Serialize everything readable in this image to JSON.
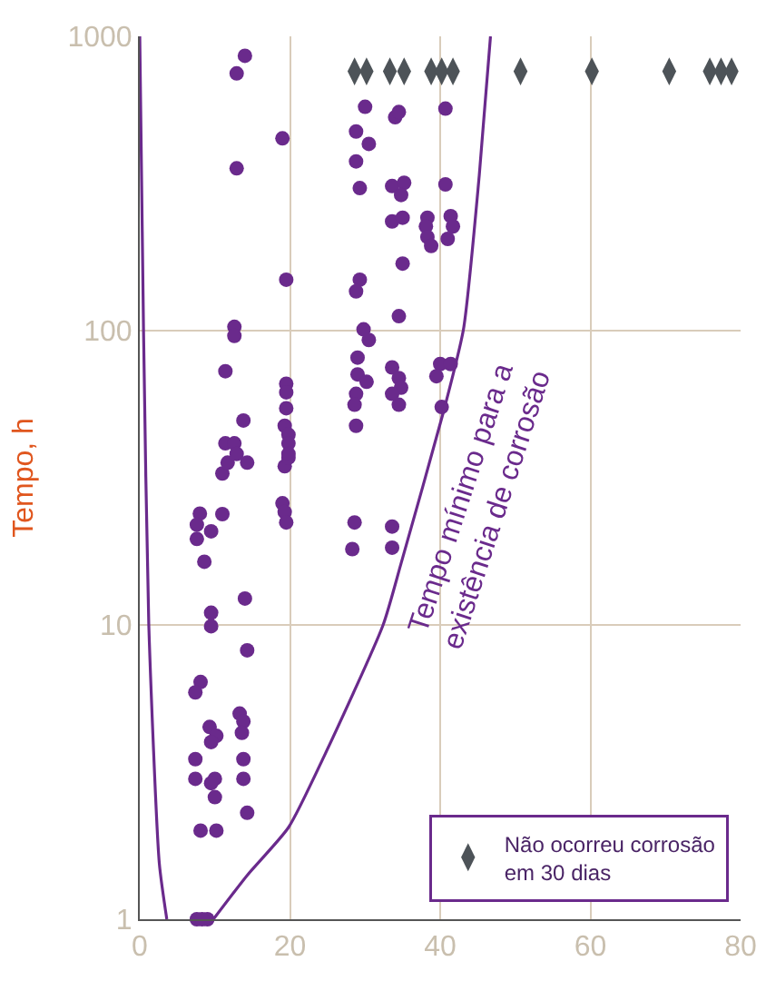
{
  "chart_data": {
    "type": "scatter",
    "ylabel": "Tempo, h",
    "log": "y",
    "grid": true,
    "legend": "bottom right",
    "xlim": [
      0,
      80
    ],
    "xticks": [
      0,
      20,
      40,
      60,
      80
    ],
    "ylim": [
      1,
      1000
    ],
    "yticks": [
      1,
      10,
      100,
      1000
    ],
    "annotations": [
      "Tempo mínimo para a\nexistência de corrosão"
    ],
    "series": [
      {
        "color": "#6a2a8c",
        "marker": "circle",
        "x": [
          8.0,
          7.6,
          7.6,
          9.5,
          8.6,
          11.0,
          9.5,
          9.5,
          14.0,
          14.3,
          8.1,
          7.4,
          13.3,
          13.8,
          9.3,
          10.2,
          9.5,
          13.6,
          7.4,
          13.8,
          7.4,
          10.0,
          9.5,
          10.0,
          13.8,
          14.3,
          8.1,
          10.2,
          7.6,
          9.0,
          8.3,
          11.0,
          11.7,
          14.3,
          19.3,
          19.0,
          19.3,
          19.5,
          19.8,
          14.0,
          12.9,
          19.0,
          12.9,
          19.5,
          12.6,
          12.6,
          11.4,
          19.5,
          19.5,
          19.5,
          13.8,
          19.3,
          19.8,
          11.4,
          12.6,
          19.8,
          12.9,
          19.8,
          30.0,
          28.8,
          30.5,
          28.8,
          29.3,
          34.0,
          34.5,
          33.6,
          35.2,
          34.8,
          33.6,
          35.0,
          38.3,
          38.1,
          38.3,
          38.8,
          40.7,
          40.7,
          41.4,
          41.7,
          41.0,
          29.3,
          28.8,
          35.0,
          29.8,
          30.5,
          34.5,
          29.0,
          29.0,
          30.2,
          28.8,
          28.6,
          28.8,
          33.6,
          34.5,
          34.8,
          33.6,
          34.5,
          40.0,
          41.4,
          39.5,
          40.2,
          28.6,
          28.3,
          33.6,
          33.6
        ],
        "values": [
          23.9,
          21.9,
          19.6,
          20.8,
          16.4,
          23.8,
          11.0,
          9.9,
          12.3,
          8.2,
          6.4,
          5.9,
          5.0,
          4.7,
          4.5,
          4.2,
          4.0,
          4.3,
          3.5,
          3.5,
          3.0,
          3.0,
          2.9,
          2.6,
          3.0,
          2.3,
          2.0,
          2.0,
          1,
          1,
          1,
          32.7,
          35.6,
          35.6,
          34.6,
          25.9,
          24.2,
          22.3,
          37.0,
          859,
          748,
          450,
          356,
          149,
          103,
          96,
          72.8,
          66,
          61.7,
          54.5,
          49.5,
          47.5,
          44.3,
          41.4,
          41.4,
          41.4,
          38.1,
          38.1,
          576,
          475,
          431,
          376,
          305,
          531,
          553,
          310,
          318,
          289,
          235,
          242,
          242,
          226,
          208,
          194,
          568,
          314,
          245,
          226,
          205,
          149,
          136,
          169,
          101,
          93,
          112,
          81,
          71,
          67,
          61,
          56,
          47.5,
          75,
          69,
          64,
          61,
          56,
          77,
          77,
          70,
          55,
          22.3,
          18.1,
          21.6,
          18.3
        ]
      },
      {
        "name": "Não ocorreu corrosão em 30 dias",
        "color": "#4d5358",
        "marker": "diamond",
        "x": [
          28.6,
          30.2,
          33.3,
          35.2,
          38.8,
          40.2,
          41.7,
          50.7,
          60.2,
          70.5,
          75.9,
          77.4,
          78.8
        ],
        "values": [
          760,
          760,
          760,
          760,
          760,
          760,
          760,
          760,
          760,
          760,
          760,
          760,
          760
        ]
      },
      {
        "type": "line",
        "color": "#6a2a8c",
        "line_style": "solid",
        "x": [
          0,
          0.5,
          1.2,
          2.6,
          3.6,
          6.5,
          9.8,
          14.3,
          19.8,
          24.5,
          32.4,
          34.8,
          40.5,
          43.1,
          45.2,
          46.7
        ],
        "values": [
          1000,
          100,
          10,
          1.55,
          1,
          null,
          1,
          1.41,
          2.05,
          3.56,
          10,
          16.2,
          53.7,
          101,
          336,
          1000
        ]
      }
    ]
  }
}
